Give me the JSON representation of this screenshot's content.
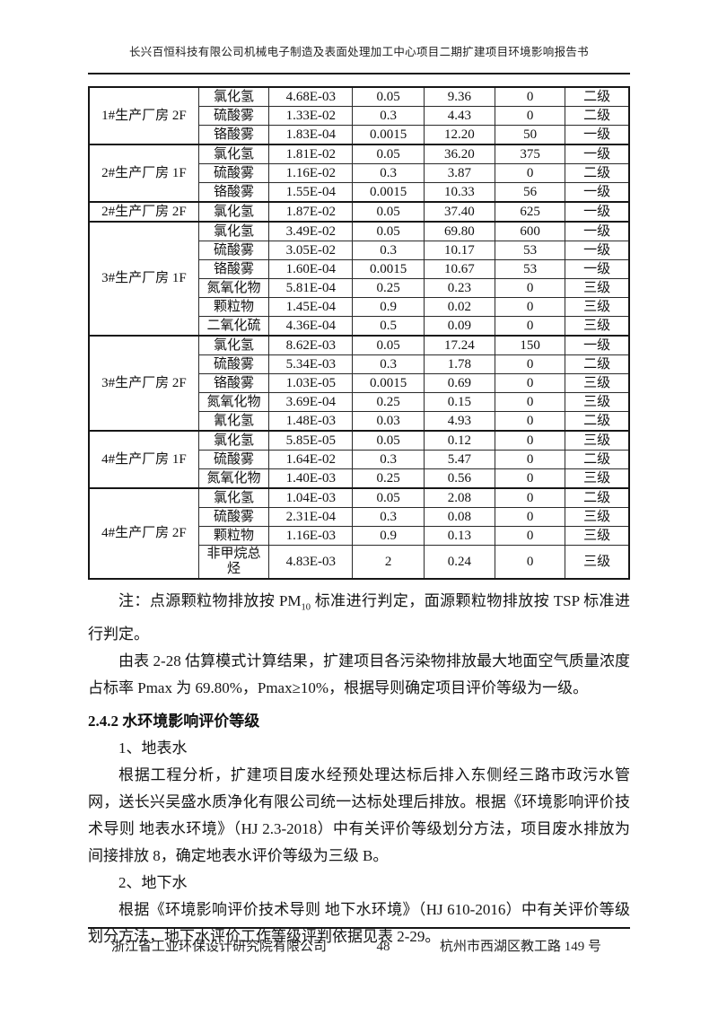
{
  "header": {
    "title": "长兴百恒科技有限公司机械电子制造及表面处理加工中心项目二期扩建项目环境影响报告书"
  },
  "table": {
    "groups": [
      {
        "location": "1#生产厂房 2F",
        "rows": [
          [
            "氯化氢",
            "4.68E-03",
            "0.05",
            "9.36",
            "0",
            "二级"
          ],
          [
            "硫酸雾",
            "1.33E-02",
            "0.3",
            "4.43",
            "0",
            "二级"
          ],
          [
            "铬酸雾",
            "1.83E-04",
            "0.0015",
            "12.20",
            "50",
            "一级"
          ]
        ]
      },
      {
        "location": "2#生产厂房 1F",
        "rows": [
          [
            "氯化氢",
            "1.81E-02",
            "0.05",
            "36.20",
            "375",
            "一级"
          ],
          [
            "硫酸雾",
            "1.16E-02",
            "0.3",
            "3.87",
            "0",
            "二级"
          ],
          [
            "铬酸雾",
            "1.55E-04",
            "0.0015",
            "10.33",
            "56",
            "一级"
          ]
        ]
      },
      {
        "location": "2#生产厂房 2F",
        "rows": [
          [
            "氯化氢",
            "1.87E-02",
            "0.05",
            "37.40",
            "625",
            "一级"
          ]
        ]
      },
      {
        "location": "3#生产厂房 1F",
        "rows": [
          [
            "氯化氢",
            "3.49E-02",
            "0.05",
            "69.80",
            "600",
            "一级"
          ],
          [
            "硫酸雾",
            "3.05E-02",
            "0.3",
            "10.17",
            "53",
            "一级"
          ],
          [
            "铬酸雾",
            "1.60E-04",
            "0.0015",
            "10.67",
            "53",
            "一级"
          ],
          [
            "氮氧化物",
            "5.81E-04",
            "0.25",
            "0.23",
            "0",
            "三级"
          ],
          [
            "颗粒物",
            "1.45E-04",
            "0.9",
            "0.02",
            "0",
            "三级"
          ],
          [
            "二氧化硫",
            "4.36E-04",
            "0.5",
            "0.09",
            "0",
            "三级"
          ]
        ]
      },
      {
        "location": "3#生产厂房 2F",
        "rows": [
          [
            "氯化氢",
            "8.62E-03",
            "0.05",
            "17.24",
            "150",
            "一级"
          ],
          [
            "硫酸雾",
            "5.34E-03",
            "0.3",
            "1.78",
            "0",
            "二级"
          ],
          [
            "铬酸雾",
            "1.03E-05",
            "0.0015",
            "0.69",
            "0",
            "三级"
          ],
          [
            "氮氧化物",
            "3.69E-04",
            "0.25",
            "0.15",
            "0",
            "三级"
          ],
          [
            "氰化氢",
            "1.48E-03",
            "0.03",
            "4.93",
            "0",
            "二级"
          ]
        ]
      },
      {
        "location": "4#生产厂房 1F",
        "rows": [
          [
            "氯化氢",
            "5.85E-05",
            "0.05",
            "0.12",
            "0",
            "三级"
          ],
          [
            "硫酸雾",
            "1.64E-02",
            "0.3",
            "5.47",
            "0",
            "二级"
          ],
          [
            "氮氧化物",
            "1.40E-03",
            "0.25",
            "0.56",
            "0",
            "三级"
          ]
        ]
      },
      {
        "location": "4#生产厂房 2F",
        "rows": [
          [
            "氯化氢",
            "1.04E-03",
            "0.05",
            "2.08",
            "0",
            "二级"
          ],
          [
            "硫酸雾",
            "2.31E-04",
            "0.3",
            "0.08",
            "0",
            "三级"
          ],
          [
            "颗粒物",
            "1.16E-03",
            "0.9",
            "0.13",
            "0",
            "三级"
          ],
          [
            "非甲烷总烃",
            "4.83E-03",
            "2",
            "0.24",
            "0",
            "三级"
          ]
        ]
      }
    ]
  },
  "content": {
    "note_prefix": "注：点源颗粒物排放按 PM",
    "note_sub": "10",
    "note_suffix": " 标准进行判定，面源颗粒物排放按 TSP 标准进行判定。",
    "para_air": "由表 2-28 估算模式计算结果，扩建项目各污染物排放最大地面空气质量浓度占标率 Pmax 为 69.80%，Pmax≥10%，根据导则确定项目评价等级为一级。",
    "heading_242": "2.4.2 水环境影响评价等级",
    "item_surface": "1、地表水",
    "para_surface": "根据工程分析，扩建项目废水经预处理达标后排入东侧经三路市政污水管网，送长兴吴盛水质净化有限公司统一达标处理后排放。根据《环境影响评价技术导则 地表水环境》（HJ 2.3-2018）中有关评价等级划分方法，项目废水排放为间接排放 8，确定地表水评价等级为三级 B。",
    "item_ground": "2、地下水",
    "para_ground": "根据《环境影响评价技术导则 地下水环境》（HJ 610-2016）中有关评价等级划分方法，地下水评价工作等级评判依据见表 2-29。"
  },
  "footer": {
    "company": "浙江省工业环保设计研究院有限公司",
    "page_number": "48",
    "address": "杭州市西湖区教工路 149 号"
  }
}
